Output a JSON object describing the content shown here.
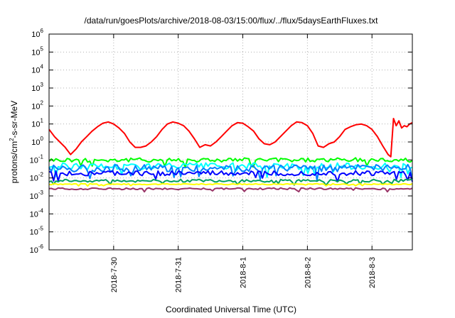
{
  "chart_data": {
    "type": "line",
    "title": "/data/run/goesPlots/archive/2018-08-03/15:00/flux/../flux/5daysEarthFluxes.txt",
    "xlabel": "Coordinated Universal Time (UTC)",
    "ylabel": "protons/cm2-s-sr-MeV",
    "ylabel_parts": {
      "before": "protons/cm",
      "sup": "2",
      "after": "-s-sr-MeV"
    },
    "yscale": "log",
    "ylim": [
      1e-06,
      1000000.0
    ],
    "y_ticks": [
      {
        "base": "10",
        "exp": "-6"
      },
      {
        "base": "10",
        "exp": "-5"
      },
      {
        "base": "10",
        "exp": "-4"
      },
      {
        "base": "10",
        "exp": "-3"
      },
      {
        "base": "10",
        "exp": "-2"
      },
      {
        "base": "10",
        "exp": "-1"
      },
      {
        "base": "10",
        "exp": "0"
      },
      {
        "base": "10",
        "exp": "1"
      },
      {
        "base": "10",
        "exp": "2"
      },
      {
        "base": "10",
        "exp": "3"
      },
      {
        "base": "10",
        "exp": "4"
      },
      {
        "base": "10",
        "exp": "5"
      },
      {
        "base": "10",
        "exp": "6"
      }
    ],
    "xlim": [
      "2018-07-29 00:00",
      "2018-08-03 15:00"
    ],
    "x_ticks": [
      "2018-7-30",
      "2018-7-31",
      "2018-8-1",
      "2018-8-2",
      "2018-8-3"
    ],
    "grid": true,
    "series": [
      {
        "color": "#ff0000",
        "values": [
          [
            "2018-07-29 00:00",
            5
          ],
          [
            "2018-07-29 02:00",
            2
          ],
          [
            "2018-07-29 04:00",
            1
          ],
          [
            "2018-07-29 06:00",
            0.5
          ],
          [
            "2018-07-29 08:00",
            0.2
          ],
          [
            "2018-07-29 10:00",
            0.4
          ],
          [
            "2018-07-29 12:00",
            1
          ],
          [
            "2018-07-29 14:00",
            2
          ],
          [
            "2018-07-29 16:00",
            4
          ],
          [
            "2018-07-29 18:00",
            7
          ],
          [
            "2018-07-29 20:00",
            11
          ],
          [
            "2018-07-29 22:00",
            13
          ],
          [
            "2018-07-30 00:00",
            10
          ],
          [
            "2018-07-30 02:00",
            6
          ],
          [
            "2018-07-30 04:00",
            3
          ],
          [
            "2018-07-30 06:00",
            1
          ],
          [
            "2018-07-30 08:00",
            0.5
          ],
          [
            "2018-07-30 10:00",
            0.5
          ],
          [
            "2018-07-30 12:00",
            0.6
          ],
          [
            "2018-07-30 14:00",
            1
          ],
          [
            "2018-07-30 16:00",
            2
          ],
          [
            "2018-07-30 18:00",
            5
          ],
          [
            "2018-07-30 20:00",
            10
          ],
          [
            "2018-07-30 22:00",
            13
          ],
          [
            "2018-07-31 00:00",
            11
          ],
          [
            "2018-07-31 02:00",
            8
          ],
          [
            "2018-07-31 04:00",
            4
          ],
          [
            "2018-07-31 06:00",
            1.5
          ],
          [
            "2018-07-31 08:00",
            0.5
          ],
          [
            "2018-07-31 10:00",
            0.7
          ],
          [
            "2018-07-31 12:00",
            0.6
          ],
          [
            "2018-07-31 14:00",
            1
          ],
          [
            "2018-07-31 16:00",
            2
          ],
          [
            "2018-07-31 18:00",
            4
          ],
          [
            "2018-07-31 20:00",
            8
          ],
          [
            "2018-07-31 22:00",
            12
          ],
          [
            "2018-08-01 00:00",
            11
          ],
          [
            "2018-08-01 02:00",
            7
          ],
          [
            "2018-08-01 04:00",
            4
          ],
          [
            "2018-08-01 06:00",
            1.5
          ],
          [
            "2018-08-01 08:00",
            0.8
          ],
          [
            "2018-08-01 10:00",
            0.7
          ],
          [
            "2018-08-01 12:00",
            1
          ],
          [
            "2018-08-01 14:00",
            2
          ],
          [
            "2018-08-01 16:00",
            4
          ],
          [
            "2018-08-01 18:00",
            8
          ],
          [
            "2018-08-01 20:00",
            13
          ],
          [
            "2018-08-01 22:00",
            12
          ],
          [
            "2018-08-02 00:00",
            8
          ],
          [
            "2018-08-02 02:00",
            3
          ],
          [
            "2018-08-02 04:00",
            0.6
          ],
          [
            "2018-08-02 06:00",
            0.5
          ],
          [
            "2018-08-02 08:00",
            0.8
          ],
          [
            "2018-08-02 10:00",
            1
          ],
          [
            "2018-08-02 12:00",
            2
          ],
          [
            "2018-08-02 14:00",
            5
          ],
          [
            "2018-08-02 16:00",
            7
          ],
          [
            "2018-08-02 18:00",
            9
          ],
          [
            "2018-08-02 20:00",
            10
          ],
          [
            "2018-08-02 22:00",
            8
          ],
          [
            "2018-08-03 00:00",
            5
          ],
          [
            "2018-08-03 02:00",
            2
          ],
          [
            "2018-08-03 04:00",
            0.6
          ],
          [
            "2018-08-03 06:00",
            0.2
          ],
          [
            "2018-08-03 07:00",
            0.15
          ],
          [
            "2018-08-03 08:00",
            20
          ],
          [
            "2018-08-03 09:00",
            8
          ],
          [
            "2018-08-03 10:00",
            15
          ],
          [
            "2018-08-03 11:00",
            6
          ],
          [
            "2018-08-03 12:00",
            8
          ],
          [
            "2018-08-03 13:00",
            7
          ],
          [
            "2018-08-03 14:00",
            10
          ],
          [
            "2018-08-03 15:00",
            12
          ]
        ]
      },
      {
        "color": "#00ff00",
        "level": 0.1,
        "var": 0.12
      },
      {
        "color": "#00ffff",
        "level": 0.045,
        "var": 0.18
      },
      {
        "color": "#0080ff",
        "level": 0.035,
        "var": 0.2
      },
      {
        "color": "#0000ff",
        "level": 0.018,
        "var": 0.14
      },
      {
        "color": "#00a060",
        "level": 0.007,
        "var": 0.08
      },
      {
        "color": "#ffff00",
        "level": 0.0045,
        "var": 0.03
      },
      {
        "color": "#993366",
        "level": 0.0025,
        "var": 0.05
      }
    ]
  }
}
